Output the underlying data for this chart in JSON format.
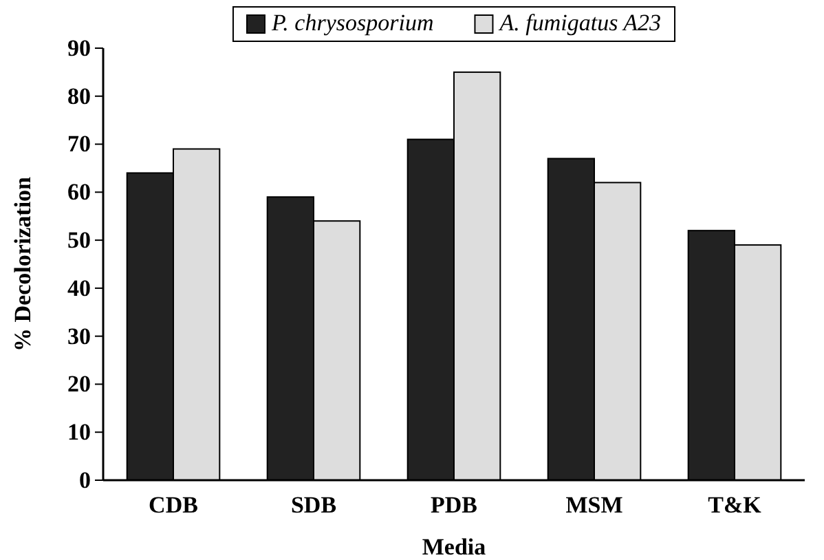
{
  "chart_data": {
    "type": "bar",
    "xlabel": "Media",
    "ylabel": "% Decolorization",
    "categories": [
      "CDB",
      "SDB",
      "PDB",
      "MSM",
      "T&K"
    ],
    "series": [
      {
        "name": "P. chrysosporium",
        "color": "#222222",
        "values": [
          64,
          59,
          71,
          67,
          52
        ]
      },
      {
        "name": "A. fumigatus A23",
        "color": "#dddddd",
        "values": [
          69,
          54,
          85,
          62,
          49
        ]
      }
    ],
    "ylim": [
      0,
      90
    ],
    "yticks": [
      0,
      10,
      20,
      30,
      40,
      50,
      60,
      70,
      80,
      90
    ],
    "grid": false,
    "legend": "top"
  }
}
